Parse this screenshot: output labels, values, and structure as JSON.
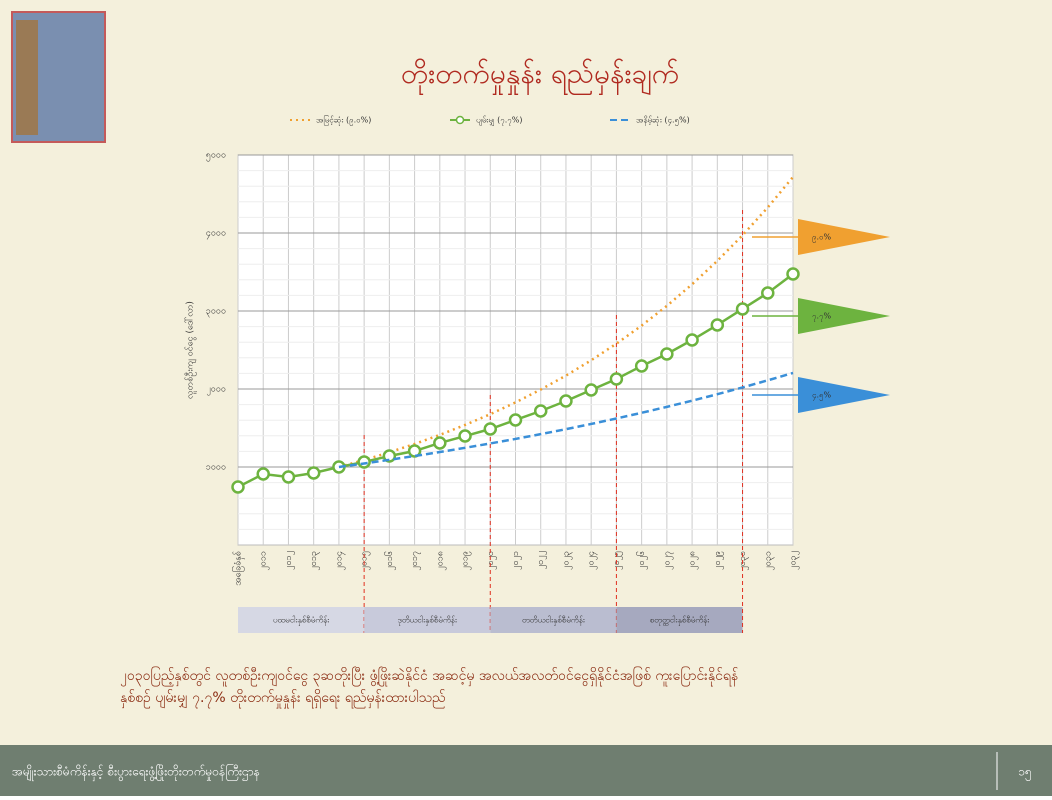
{
  "slide": {
    "title": "တိုးတက်မှုနှုန်း ရည်မှန်းချက်",
    "caption": [
      "၂၀၃၀ပြည့်နှစ်တွင် လူတစ်ဦးကျဝင်ငွေ ၃ဆတိုးပြီး ဖွံ့ဖြိုးဆဲနိုင်ငံ အဆင့်မှ အလယ်အလတ်ဝင်ငွေရှိနိုင်ငံအဖြစ် ကူးပြောင်းနိုင်ရန်",
      "နှစ်စဉ် ပျမ်းမျှ ၇.၇% တိုးတက်မှုနှုန်း ရရှိရေး ရည်မှန်းထားပါသည်"
    ],
    "footer": "အမျိုးသားစီမံကိန်းနှင့် စီးပွားရေးဖွံ့ဖြိုးတိုးတက်မှုဝန်ကြီးဌာန",
    "page_number": "၁၅",
    "phases": [
      "ပထမငါးနှစ်စီမံကိန်း",
      "ဒုတိယငါးနှစ်စီမံကိန်း",
      "တတိယငါးနှစ်စီမံကိန်း",
      "စတုတ္ထငါးနှစ်စီမံကိန်း"
    ]
  },
  "chart_data": {
    "type": "line",
    "y_label": "လူတစ်ဦးကျ ဝင်ငွေ (ဒေါ်လာ)",
    "categories": [
      "အခြေခံနှစ်",
      "၂၀၁၁",
      "၂၀၁၂",
      "၂၀၁၃",
      "၂၀၁၄",
      "၂၀၁၅",
      "၂၀၁၆",
      "၂၀၁၇",
      "၂၀၁၈",
      "၂၀၁၉",
      "၂၀၂၀",
      "၂၀၂၁",
      "၂၀၂၂",
      "၂၀၂၃",
      "၂၀၂၄",
      "၂၀၂၅",
      "၂၀၂၆",
      "၂၀၂၇",
      "၂၀၂၈",
      "၂၀၂၉",
      "၂၀၃၀",
      "၂၀၃၁",
      "၂၀၃၂"
    ],
    "series": [
      {
        "name": "အမြင့်ဆုံး (၉.၀%)",
        "color": "#f0a030",
        "style": "dotted",
        "values": [
          null,
          null,
          null,
          null,
          1000,
          1090,
          1188,
          1295,
          1412,
          1539,
          1677,
          1828,
          1993,
          2172,
          2368,
          2581,
          2813,
          3066,
          3342,
          3643,
          3971,
          4328,
          4718
        ]
      },
      {
        "name": "ပျမ်းမျှ (၇.၇%)",
        "color": "#6db33f",
        "style": "markers",
        "values": [
          744,
          910,
          872,
          923,
          1000,
          1064,
          1141,
          1205,
          1308,
          1397,
          1487,
          1603,
          1718,
          1846,
          1987,
          2128,
          2295,
          2449,
          2628,
          2821,
          3026,
          3231,
          3474
        ]
      },
      {
        "name": "အနိမ့်ဆုံး (၄.၅%)",
        "color": "#3a8fd8",
        "style": "dashed",
        "values": [
          null,
          null,
          null,
          null,
          1000,
          1045,
          1092,
          1141,
          1192,
          1246,
          1302,
          1360,
          1421,
          1485,
          1552,
          1622,
          1695,
          1771,
          1850,
          1933,
          2020,
          2111,
          2206
        ]
      }
    ],
    "flag_labels": [
      "၉.၀%",
      "၇.၇%",
      "၄.၅%"
    ],
    "ylim": [
      0,
      5000
    ],
    "yticks": [
      {
        "value": 1000,
        "label": "၁၀၀၀"
      },
      {
        "value": 2000,
        "label": "၂၀၀၀"
      },
      {
        "value": 3000,
        "label": "၃၀၀၀"
      },
      {
        "value": 4000,
        "label": "၄၀၀၀"
      },
      {
        "value": 5000,
        "label": "၅၀၀၀"
      }
    ],
    "grid": true
  }
}
